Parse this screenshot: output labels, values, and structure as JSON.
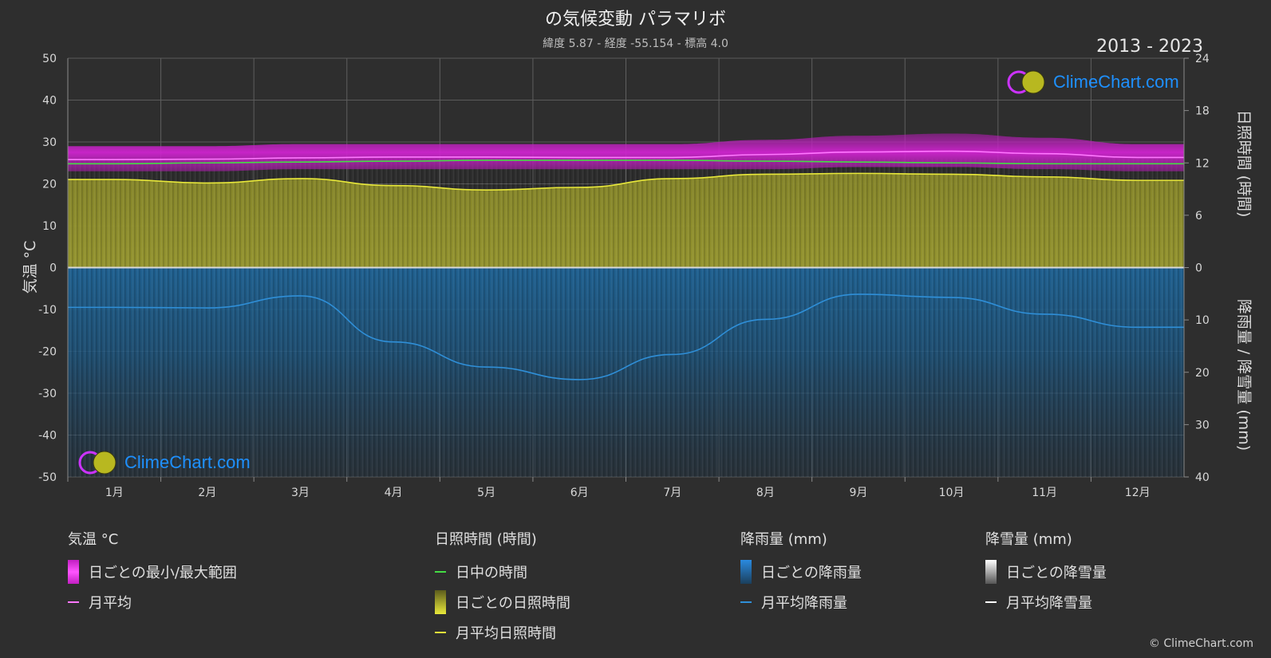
{
  "header": {
    "title": "の気候変動 パラマリボ",
    "subtitle": "緯度 5.87 - 経度 -55.154 - 標高 4.0",
    "years": "2013 - 2023"
  },
  "brand": {
    "logo_text": "ClimeChart.com",
    "copyright": "© ClimeChart.com"
  },
  "chart_data": {
    "type": "area",
    "x_categories": [
      "1月",
      "2月",
      "3月",
      "4月",
      "5月",
      "6月",
      "7月",
      "8月",
      "9月",
      "10月",
      "11月",
      "12月"
    ],
    "axes": {
      "left": {
        "label": "気温 °C",
        "range": [
          -50,
          50
        ],
        "ticks": [
          50,
          40,
          30,
          20,
          10,
          0,
          -10,
          -20,
          -30,
          -40,
          -50
        ]
      },
      "right_top": {
        "label": "日照時間 (時間)",
        "range": [
          0,
          24
        ],
        "ticks": [
          24,
          18,
          12,
          6,
          0
        ]
      },
      "right_bottom": {
        "label": "降雨量 / 降雪量 (mm)",
        "range": [
          0,
          40
        ],
        "ticks": [
          0,
          10,
          20,
          30,
          40
        ]
      }
    },
    "series": [
      {
        "name": "月平均",
        "unit": "°C",
        "color": "#ff77ff",
        "values": [
          25.8,
          25.9,
          26.2,
          26.4,
          26.4,
          26.3,
          26.3,
          27.0,
          27.6,
          27.8,
          27.2,
          26.3
        ]
      },
      {
        "name": "日中の時間",
        "unit": "時間",
        "color": "#44dd44",
        "values": [
          11.9,
          12.0,
          12.1,
          12.2,
          12.3,
          12.3,
          12.3,
          12.2,
          12.1,
          12.0,
          11.9,
          11.9
        ]
      },
      {
        "name": "月平均日照時間",
        "unit": "時間",
        "color": "#e8e83a",
        "values": [
          10.1,
          9.7,
          10.2,
          9.4,
          8.9,
          9.2,
          10.2,
          10.7,
          10.8,
          10.7,
          10.4,
          10.0
        ]
      },
      {
        "name": "月平均降雨量",
        "unit": "mm",
        "color": "#2f8fd8",
        "values": [
          7.6,
          7.7,
          5.4,
          14.2,
          19.0,
          21.4,
          16.6,
          9.9,
          5.1,
          5.7,
          8.9,
          11.4
        ]
      },
      {
        "name": "月平均降雪量",
        "unit": "mm",
        "color": "#ffffff",
        "values": [
          0,
          0,
          0,
          0,
          0,
          0,
          0,
          0,
          0,
          0,
          0,
          0
        ]
      }
    ],
    "daily_temperature_range": {
      "min": [
        23,
        23,
        23.5,
        23.5,
        23.5,
        23.5,
        23.5,
        23.5,
        24,
        24,
        23.5,
        23
      ],
      "max": [
        29,
        29,
        29.5,
        29.5,
        29.5,
        29.5,
        29.5,
        30.5,
        31.5,
        32,
        31,
        29.5
      ]
    },
    "grid": true
  },
  "legend": {
    "temperature": {
      "title": "気温 °C",
      "range": "日ごとの最小/最大範囲",
      "avg": "月平均"
    },
    "sunshine": {
      "title": "日照時間 (時間)",
      "daylight": "日中の時間",
      "daily": "日ごとの日照時間",
      "avg": "月平均日照時間"
    },
    "rain": {
      "title": "降雨量 (mm)",
      "daily": "日ごとの降雨量",
      "avg": "月平均降雨量"
    },
    "snow": {
      "title": "降雪量 (mm)",
      "daily": "日ごとの降雪量",
      "avg": "月平均降雪量"
    }
  },
  "colors": {
    "background": "#2e2e2e",
    "temp_range": "#c21ec2",
    "sunshine_fill": "#8c8c28",
    "rain_fill": "#1f5f8f"
  }
}
